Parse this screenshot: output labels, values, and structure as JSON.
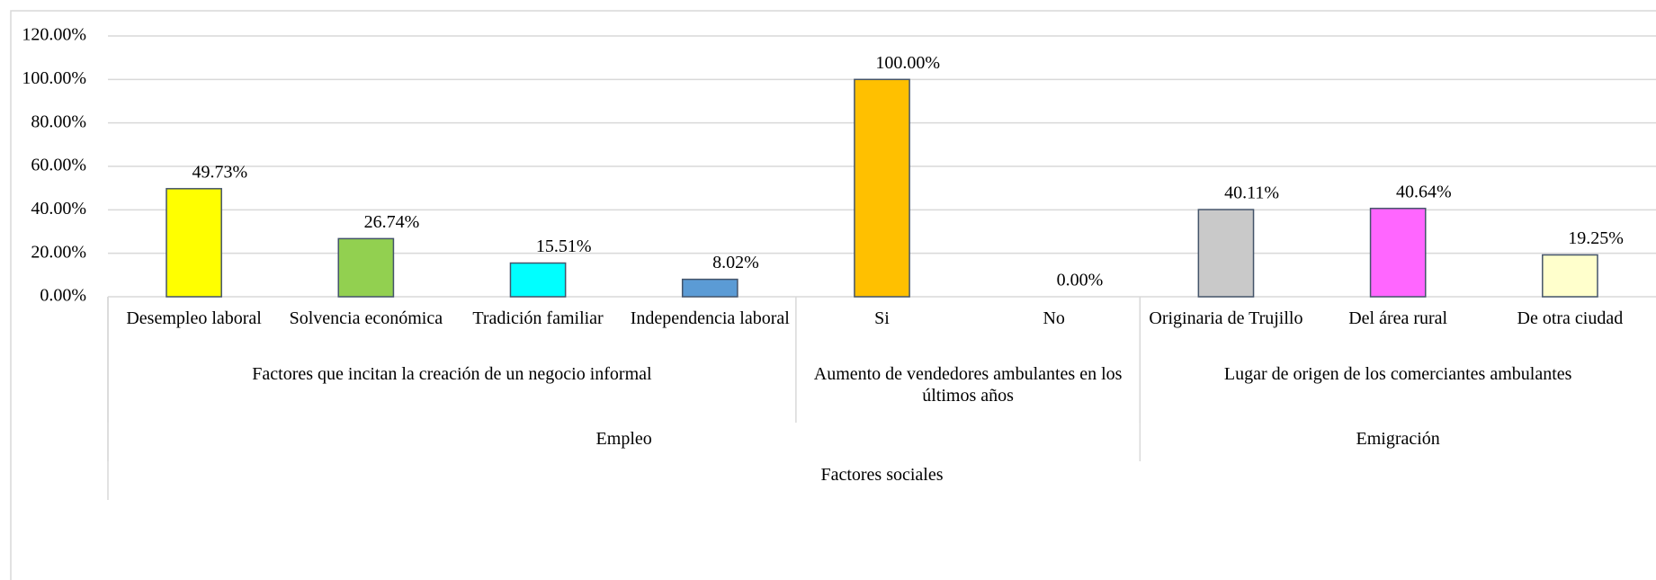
{
  "chart_data": {
    "type": "bar",
    "ylim": [
      0,
      120
    ],
    "yticks": [
      {
        "value": 0,
        "label": "0.00%"
      },
      {
        "value": 20,
        "label": "20.00%"
      },
      {
        "value": 40,
        "label": "40.00%"
      },
      {
        "value": 60,
        "label": "60.00%"
      },
      {
        "value": 80,
        "label": "80.00%"
      },
      {
        "value": 100,
        "label": "100.00%"
      },
      {
        "value": 120,
        "label": "120.00%"
      }
    ],
    "grid": true,
    "groups": [
      {
        "name": "Factores sociales",
        "groups": [
          {
            "name": "Empleo",
            "groups": [
              {
                "name": "Factores que incitan la creación de un negocio informal",
                "categories": [
                  "Desempleo laboral",
                  "Solvencia económica",
                  "Tradición familiar",
                  "Independencia laboral"
                ],
                "values": [
                  49.73,
                  26.74,
                  15.51,
                  8.02
                ],
                "value_labels": [
                  "49.73%",
                  "26.74%",
                  "15.51%",
                  "8.02%"
                ],
                "colors": [
                  "#ffff00",
                  "#92d050",
                  "#00ffff",
                  "#5b9bd5"
                ]
              },
              {
                "name": "Aumento de vendedores ambulantes en los últimos años",
                "categories": [
                  "Si",
                  "No"
                ],
                "values": [
                  100,
                  0
                ],
                "value_labels": [
                  "100.00%",
                  "0.00%"
                ],
                "colors": [
                  "#ffc000",
                  "#ffc000"
                ]
              }
            ]
          },
          {
            "name": "Emigración",
            "groups": [
              {
                "name": "Lugar de origen de los comerciantes ambulantes",
                "categories": [
                  "Originaria de Trujillo",
                  "Del área rural",
                  "De otra ciudad"
                ],
                "values": [
                  40.11,
                  40.64,
                  19.25
                ],
                "value_labels": [
                  "40.11%",
                  "40.64%",
                  "19.25%"
                ],
                "colors": [
                  "#c9c9c9",
                  "#ff66ff",
                  "#ffffcc"
                ]
              }
            ]
          }
        ]
      }
    ]
  }
}
